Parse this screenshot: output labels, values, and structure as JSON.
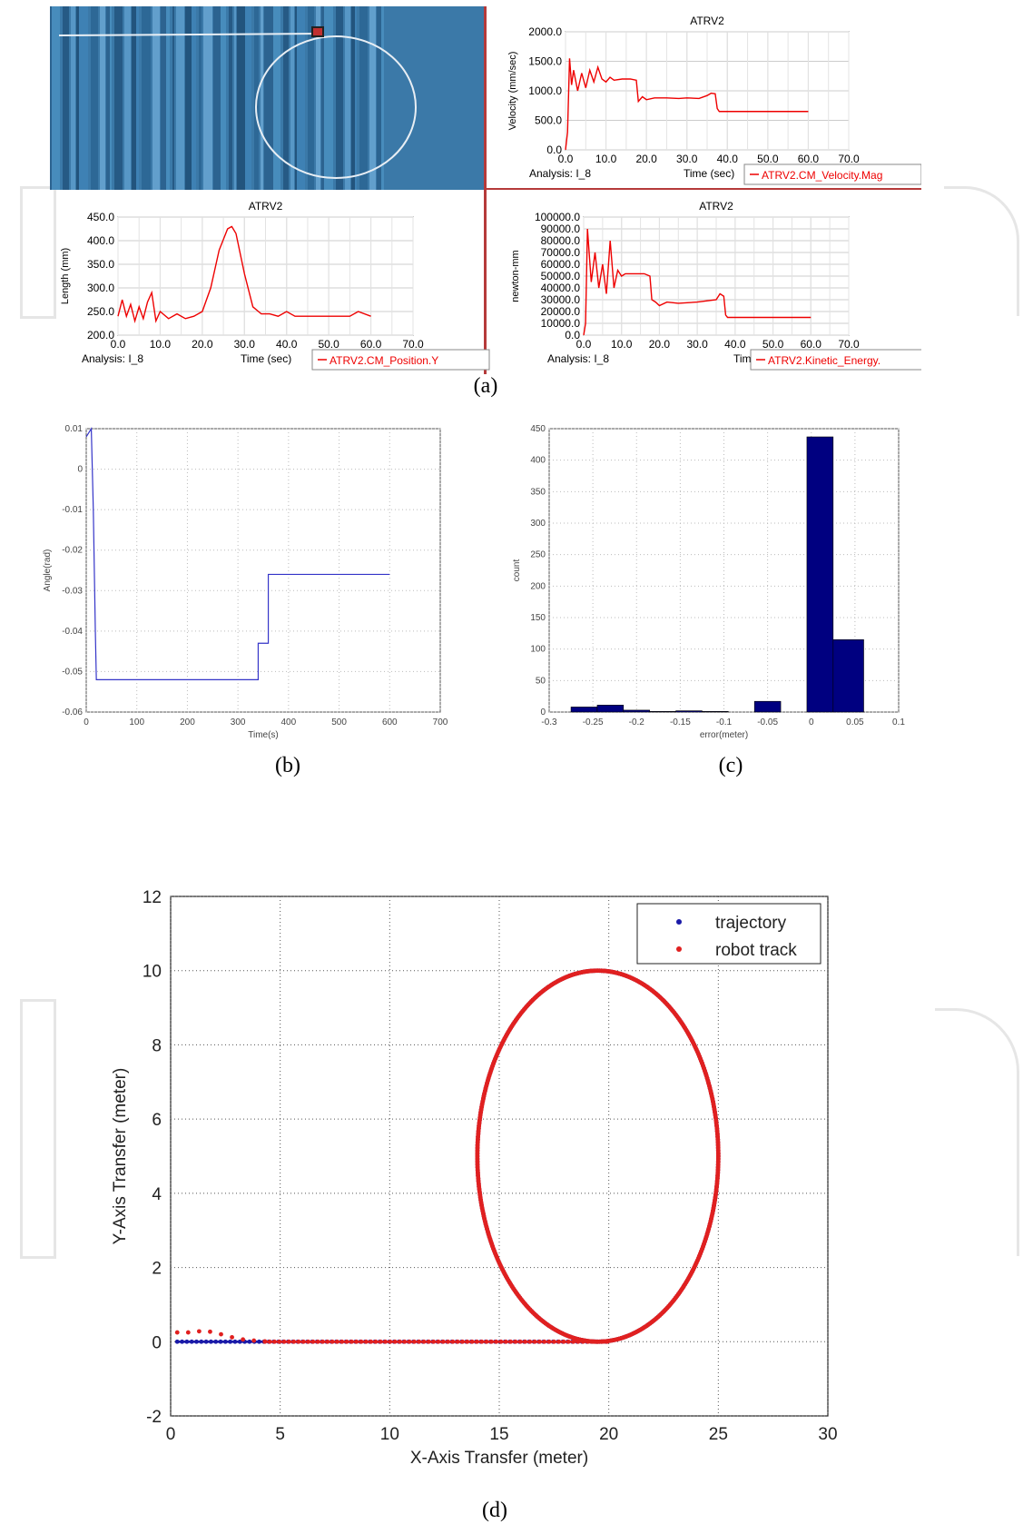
{
  "captions": {
    "a": "(a)",
    "b": "(b)",
    "c": "(c)",
    "d": "(d)"
  },
  "panel_a": {
    "charts": [
      {
        "id": "velocity",
        "type": "line",
        "title": "ATRV2",
        "ylabel": "Velocity (mm/sec)",
        "xlabel": "Time (sec)",
        "analysis": "Analysis:  I_8",
        "legend": "ATRV2.CM_Velocity.Mag",
        "yticks": [
          "2000.0",
          "1500.0",
          "1000.0",
          "500.0",
          "0.0"
        ],
        "xticks": [
          "0.0",
          "10.0",
          "20.0",
          "30.0",
          "40.0",
          "50.0",
          "60.0",
          "70.0"
        ],
        "xlim": [
          0,
          70
        ],
        "ylim": [
          0,
          2000
        ],
        "x": [
          0,
          0.5,
          1,
          1.5,
          2,
          3,
          4,
          5,
          6,
          7,
          8,
          9,
          10,
          11,
          12,
          14,
          16,
          17.5,
          18,
          19,
          20,
          22,
          25,
          28,
          30,
          33,
          35,
          36,
          37,
          37.5,
          38,
          40,
          45,
          50,
          55,
          60
        ],
        "y": [
          0,
          300,
          1550,
          1100,
          1350,
          1000,
          1300,
          1050,
          1350,
          1150,
          1400,
          1200,
          1150,
          1230,
          1180,
          1200,
          1200,
          1180,
          820,
          900,
          850,
          880,
          880,
          870,
          880,
          870,
          920,
          960,
          950,
          700,
          650,
          650,
          650,
          650,
          650,
          650
        ]
      },
      {
        "id": "position",
        "type": "line",
        "title": "ATRV2",
        "ylabel": "Length (mm)",
        "xlabel": "Time (sec)",
        "analysis": "Analysis:  I_8",
        "legend": "ATRV2.CM_Position.Y",
        "yticks": [
          "450.0",
          "400.0",
          "350.0",
          "300.0",
          "250.0",
          "200.0"
        ],
        "xticks": [
          "0.0",
          "10.0",
          "20.0",
          "30.0",
          "40.0",
          "50.0",
          "60.0",
          "70.0"
        ],
        "xlim": [
          0,
          70
        ],
        "ylim": [
          200,
          450
        ],
        "x": [
          0,
          1,
          2,
          3,
          4,
          5,
          6,
          7,
          8,
          9,
          10,
          12,
          14,
          16,
          18,
          20,
          22,
          24,
          26,
          27,
          28,
          30,
          32,
          34,
          36,
          38,
          40,
          42,
          44,
          46,
          50,
          55,
          57,
          60
        ],
        "y": [
          240,
          275,
          240,
          265,
          230,
          260,
          235,
          270,
          290,
          230,
          250,
          235,
          245,
          235,
          240,
          250,
          300,
          380,
          425,
          430,
          415,
          330,
          260,
          245,
          245,
          240,
          250,
          240,
          240,
          240,
          240,
          240,
          250,
          240
        ]
      },
      {
        "id": "kinetic",
        "type": "line",
        "title": "ATRV2",
        "ylabel": "newton-mm",
        "xlabel": "Time (sec)",
        "analysis": "Analysis:  I_8",
        "legend": "ATRV2.Kinetic_Energy.",
        "yticks": [
          "100000.0",
          "90000.0",
          "80000.0",
          "70000.0",
          "60000.0",
          "50000.0",
          "40000.0",
          "30000.0",
          "20000.0",
          "10000.0",
          "0.0"
        ],
        "xticks": [
          "0.0",
          "10.0",
          "20.0",
          "30.0",
          "40.0",
          "50.0",
          "60.0",
          "70.0"
        ],
        "xlim": [
          0,
          70
        ],
        "ylim": [
          0,
          100000
        ],
        "x": [
          0,
          0.5,
          1,
          2,
          3,
          4,
          5,
          6,
          7,
          8,
          9,
          10,
          11,
          12,
          14,
          16,
          17.5,
          18,
          19,
          20,
          22,
          25,
          30,
          35,
          36,
          37,
          37.5,
          38,
          40,
          45,
          50,
          55,
          60
        ],
        "y": [
          0,
          10000,
          90000,
          45000,
          70000,
          40000,
          60000,
          35000,
          80000,
          40000,
          55000,
          50000,
          52000,
          52000,
          52000,
          52000,
          50000,
          30000,
          28000,
          25000,
          28000,
          27000,
          28000,
          30000,
          35000,
          33000,
          17000,
          15000,
          15000,
          15000,
          15000,
          15000,
          15000
        ]
      }
    ]
  },
  "panel_b": {
    "type": "line",
    "xlabel": "Time(s)",
    "ylabel": "Angle(rad)",
    "xlim": [
      0,
      700
    ],
    "ylim": [
      -0.06,
      0.01
    ],
    "xticks": [
      "0",
      "100",
      "200",
      "300",
      "400",
      "500",
      "600",
      "700"
    ],
    "yticks": [
      "0.01",
      "0",
      "-0.01",
      "-0.02",
      "-0.03",
      "-0.04",
      "-0.05",
      "-0.06"
    ],
    "x": [
      0,
      10,
      14,
      18,
      20,
      340,
      340,
      350,
      360,
      360,
      365,
      600
    ],
    "y": [
      0.008,
      0.01,
      -0.01,
      -0.04,
      -0.052,
      -0.052,
      -0.043,
      -0.043,
      -0.043,
      -0.026,
      -0.026,
      -0.026
    ]
  },
  "panel_c": {
    "type": "bar",
    "xlabel": "error(meter)",
    "ylabel": "count",
    "xlim": [
      -0.3,
      0.1
    ],
    "ylim": [
      0,
      450
    ],
    "xticks": [
      "-0.3",
      "-0.25",
      "-0.2",
      "-0.15",
      "-0.1",
      "-0.05",
      "0",
      "0.05",
      "0.1"
    ],
    "yticks": [
      "450",
      "400",
      "350",
      "300",
      "250",
      "200",
      "150",
      "100",
      "50",
      "0"
    ],
    "bins": [
      {
        "x0": -0.275,
        "x1": -0.245,
        "value": 8
      },
      {
        "x0": -0.245,
        "x1": -0.215,
        "value": 11
      },
      {
        "x0": -0.215,
        "x1": -0.185,
        "value": 3
      },
      {
        "x0": -0.185,
        "x1": -0.155,
        "value": 1
      },
      {
        "x0": -0.155,
        "x1": -0.125,
        "value": 2
      },
      {
        "x0": -0.125,
        "x1": -0.095,
        "value": 1
      },
      {
        "x0": -0.065,
        "x1": -0.035,
        "value": 17
      },
      {
        "x0": -0.005,
        "x1": 0.025,
        "value": 437
      },
      {
        "x0": 0.025,
        "x1": 0.06,
        "value": 115
      }
    ],
    "color": "#000080"
  },
  "chart_data": {
    "type": "scatter",
    "xlabel": "X-Axis Transfer (meter)",
    "ylabel": "Y-Axis Transfer (meter)",
    "xlim": [
      0,
      30
    ],
    "ylim": [
      -2,
      12
    ],
    "xticks": [
      "0",
      "5",
      "10",
      "15",
      "20",
      "25",
      "30"
    ],
    "yticks": [
      "12",
      "10",
      "8",
      "6",
      "4",
      "2",
      "0",
      "-2"
    ],
    "grid": true,
    "legend_position": "top-right",
    "series": [
      {
        "name": "trajectory",
        "color": "#1a1aa8",
        "line": {
          "x_from": 0.3,
          "x_to": 20,
          "y": 0
        },
        "ellipse": {
          "cx": 19.5,
          "cy": 5,
          "rx": 5.5,
          "ry": 5
        }
      },
      {
        "name": "robot track",
        "color": "#e02020",
        "start_points": [
          [
            0.3,
            0.25
          ],
          [
            0.8,
            0.25
          ],
          [
            1.3,
            0.28
          ],
          [
            1.8,
            0.27
          ],
          [
            2.3,
            0.2
          ],
          [
            2.8,
            0.12
          ],
          [
            3.3,
            0.06
          ],
          [
            3.8,
            0.03
          ],
          [
            4.3,
            0.01
          ]
        ],
        "line": {
          "x_from": 4.3,
          "x_to": 20,
          "y": 0
        },
        "ellipse": {
          "cx": 19.5,
          "cy": 5,
          "rx": 5.5,
          "ry": 5
        }
      }
    ]
  }
}
